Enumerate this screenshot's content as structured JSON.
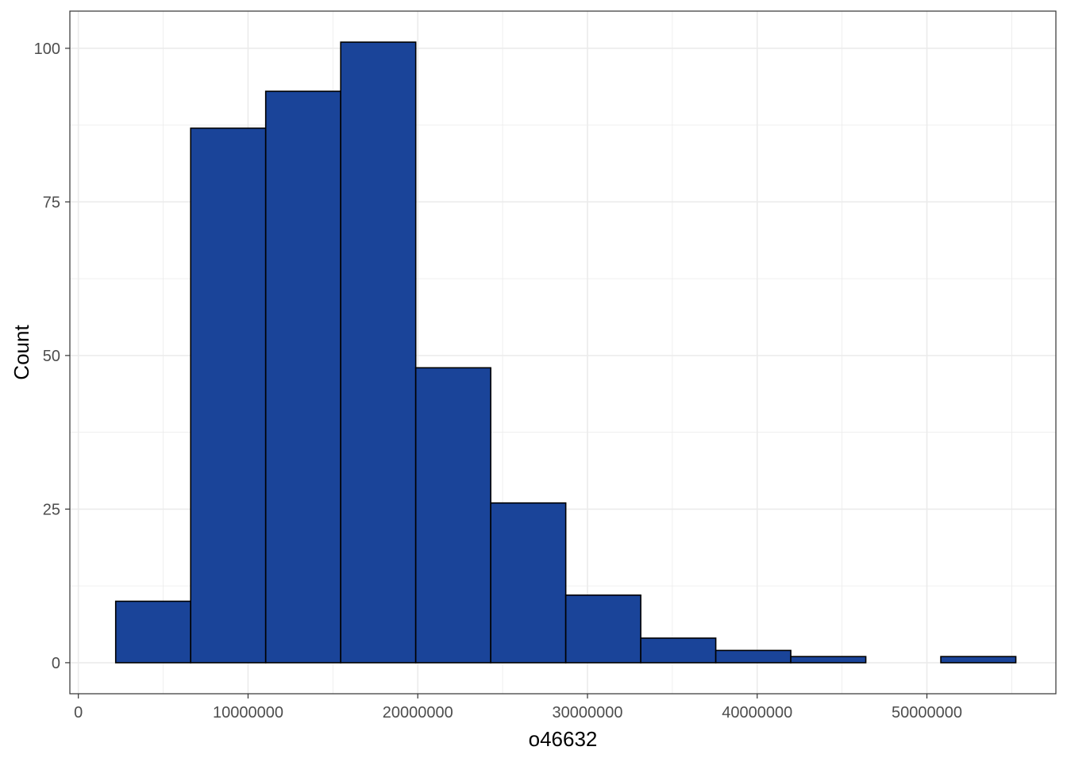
{
  "chart_data": {
    "type": "bar",
    "subtype": "histogram",
    "xlabel": "o46632",
    "ylabel": "Count",
    "xlim": [
      -500000,
      57600000
    ],
    "ylim": [
      -5.05,
      106.05
    ],
    "x_ticks": [
      0,
      10000000,
      20000000,
      30000000,
      40000000,
      50000000
    ],
    "x_tick_labels": [
      "0",
      "10000000",
      "20000000",
      "30000000",
      "40000000",
      "50000000"
    ],
    "y_ticks": [
      0,
      25,
      50,
      75,
      100
    ],
    "y_tick_labels": [
      "0",
      "25",
      "50",
      "75",
      "100"
    ],
    "bin_edges": [
      2200000,
      6620000,
      11040000,
      15460000,
      19880000,
      24300000,
      28720000,
      33140000,
      37560000,
      41980000,
      46400000,
      50820000,
      55240000
    ],
    "counts": [
      10,
      87,
      93,
      101,
      48,
      26,
      11,
      4,
      2,
      1,
      0,
      1
    ],
    "grid": true,
    "legend": "none",
    "colors": {
      "fill": "#1A4499",
      "outline": "#000000",
      "grid": "#ebebeb",
      "panel_border": "#333333"
    }
  }
}
